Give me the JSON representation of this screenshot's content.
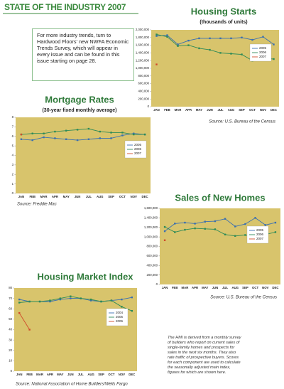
{
  "header": {
    "title": "STATE OF THE INDUSTRY 2007"
  },
  "sidebar": {
    "text": "For more industry trends, turn to Hardwood Floors' new NWFA Economic Trends Survey, which will appear in every issue and can be found in this issue starting on page 28."
  },
  "note": {
    "text": "The HMI is derived from a monthly survey of builders who report on current sales of single-family homes and prospects for sales in the next six months. They also rate traffic of prospective buyers. Scores for each component are used to calculate the seasonally adjusted main index, figures for which are shown here."
  },
  "chart_data": [
    {
      "type": "line",
      "title": "Housing Starts",
      "subtitle": "(thousands of units)",
      "source": "Source: U.S. Bureau of the Census",
      "categories": [
        "JAN",
        "FEB",
        "MAR",
        "APR",
        "MAY",
        "JUN",
        "JUL",
        "AUG",
        "SEP",
        "OCT",
        "NOV",
        "DEC"
      ],
      "series": [
        {
          "name": "2005",
          "color": "#3a6fb0",
          "values": [
            1840000,
            1860000,
            1620000,
            1720000,
            1780000,
            1780000,
            1780000,
            1780000,
            1800000,
            1740000,
            1820000,
            1620000
          ]
        },
        {
          "name": "2006",
          "color": "#2e8b57",
          "values": [
            1880000,
            1820000,
            1580000,
            1600000,
            1520000,
            1480000,
            1400000,
            1380000,
            1360000,
            1200000,
            1260000,
            1240000
          ]
        },
        {
          "name": "2007",
          "color": "#d04a2a",
          "values": [
            1100000,
            null,
            null,
            null,
            null,
            null,
            null,
            null,
            null,
            null,
            null,
            null
          ]
        }
      ],
      "ylim": [
        0,
        2000000
      ],
      "yticks": [
        0,
        {
          "value": 200000,
          "label": "200,000"
        },
        {
          "value": 400000,
          "label": "400,000"
        },
        {
          "value": 600000,
          "label": "600,000"
        },
        {
          "value": 800000,
          "label": "800,000"
        },
        {
          "value": 1000000,
          "label": "1,000,000"
        },
        {
          "value": 1200000,
          "label": "1,200,000"
        },
        {
          "value": 1400000,
          "label": "1,400,000"
        },
        {
          "value": 1600000,
          "label": "1,600,000"
        },
        {
          "value": 1800000,
          "label": "1,800,000"
        },
        {
          "value": 2000000,
          "label": "2,000,000"
        }
      ],
      "background": "#d8c46c"
    },
    {
      "type": "line",
      "title": "Mortgage Rates",
      "subtitle": "(30-year fixed monthly average)",
      "source": "Source: Freddie Mac",
      "categories": [
        "JAN",
        "FEB",
        "MAR",
        "APR",
        "MAY",
        "JUN",
        "JUL",
        "AUG",
        "SEP",
        "OCT",
        "NOV",
        "DEC"
      ],
      "series": [
        {
          "name": "2005",
          "color": "#3a6fb0",
          "values": [
            5.7,
            5.6,
            5.9,
            5.8,
            5.7,
            5.6,
            5.7,
            5.8,
            5.8,
            6.1,
            6.3,
            6.2
          ]
        },
        {
          "name": "2006",
          "color": "#2e8b57",
          "values": [
            6.2,
            6.3,
            6.3,
            6.5,
            6.6,
            6.7,
            6.8,
            6.5,
            6.4,
            6.4,
            6.2,
            6.2
          ]
        },
        {
          "name": "2007",
          "color": "#d04a2a",
          "values": [
            6.2,
            null,
            null,
            null,
            null,
            null,
            null,
            null,
            null,
            null,
            null,
            null
          ]
        }
      ],
      "ylim": [
        0,
        8
      ],
      "yticks": [
        0,
        1,
        2,
        3,
        4,
        5,
        6,
        7,
        8
      ],
      "background": "#d8c46c"
    },
    {
      "type": "line",
      "title": "Sales of New Homes",
      "source": "Source: U.S. Bureau of the Census",
      "categories": [
        "JAN",
        "FEB",
        "MAR",
        "APR",
        "MAY",
        "JUN",
        "JUL",
        "AUG",
        "SEP",
        "OCT",
        "NOV",
        "DEC"
      ],
      "series": [
        {
          "name": "2005",
          "color": "#3a6fb0",
          "values": [
            1120000,
            1280000,
            1300000,
            1280000,
            1320000,
            1330000,
            1380000,
            1220000,
            1270000,
            1400000,
            1250000,
            1300000
          ]
        },
        {
          "name": "2006",
          "color": "#2e8b57",
          "values": [
            1210000,
            1100000,
            1150000,
            1180000,
            1170000,
            1160000,
            1050000,
            1020000,
            1040000,
            1000000,
            1050000,
            1100000
          ]
        },
        {
          "name": "2007",
          "color": "#d04a2a",
          "values": [
            930000,
            null,
            null,
            null,
            null,
            null,
            null,
            null,
            null,
            null,
            null,
            null
          ]
        }
      ],
      "ylim": [
        0,
        1600000
      ],
      "yticks": [
        0,
        {
          "value": 200000,
          "label": "200,000"
        },
        {
          "value": 400000,
          "label": "400,000"
        },
        {
          "value": 600000,
          "label": "600,000"
        },
        {
          "value": 800000,
          "label": "800,000"
        },
        {
          "value": 1000000,
          "label": "1,000,000"
        },
        {
          "value": 1200000,
          "label": "1,200,000"
        },
        {
          "value": 1400000,
          "label": "1,400,000"
        },
        {
          "value": 1600000,
          "label": "1,600,000"
        }
      ],
      "background": "#d8c46c"
    },
    {
      "type": "line",
      "title": "Housing Market Index",
      "source": "Source: National Association of Home Builders/Wells Fargo",
      "categories": [
        "JAN",
        "FEB",
        "MAR",
        "APR",
        "MAY",
        "JUN",
        "JUL",
        "AUG",
        "SEP",
        "OCT",
        "NOV",
        "DEC"
      ],
      "series": [
        {
          "name": "2004",
          "color": "#3a6fb0",
          "values": [
            69,
            67,
            67,
            67,
            69,
            70,
            70,
            68,
            67,
            68,
            69,
            71
          ]
        },
        {
          "name": "2005",
          "color": "#2e8b57",
          "values": [
            66,
            67,
            67,
            68,
            70,
            72,
            70,
            69,
            67,
            68,
            62,
            58
          ]
        },
        {
          "name": "2006",
          "color": "#d04a2a",
          "values": [
            56,
            40,
            null,
            null,
            null,
            null,
            null,
            null,
            null,
            null,
            null,
            null
          ]
        }
      ],
      "ylim": [
        0,
        80
      ],
      "yticks": [
        0,
        10,
        20,
        30,
        40,
        50,
        60,
        70,
        80
      ],
      "background": "#d8c46c"
    }
  ]
}
